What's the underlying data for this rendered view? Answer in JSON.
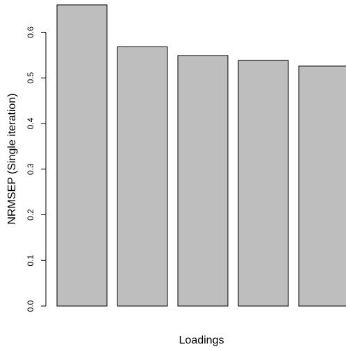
{
  "chart_data": {
    "type": "bar",
    "categories": [
      "",
      "",
      "",
      "",
      ""
    ],
    "values": [
      0.66,
      0.568,
      0.549,
      0.538,
      0.526
    ],
    "title": "",
    "xlabel": "Loadings",
    "ylabel": "NRMSEP (Single iteration)",
    "ylim": [
      0,
      0.66
    ],
    "yticks": [
      "0.0",
      "0.1",
      "0.2",
      "0.3",
      "0.4",
      "0.5",
      "0.6"
    ],
    "grid": false,
    "legend": "none",
    "bar_color": "#bebebe",
    "bar_border_color": "#000000"
  }
}
